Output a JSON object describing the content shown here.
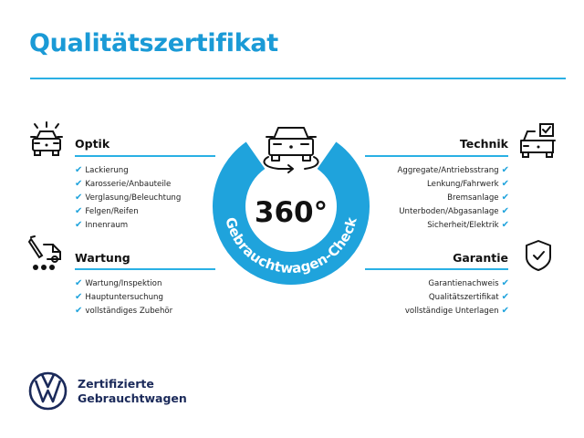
{
  "title": "Qualitätszertifikat",
  "colors": {
    "accent": "#1fa3dc",
    "title": "#1a9ad6",
    "brand": "#1b2a5a"
  },
  "center": {
    "big_text": "360°",
    "ring_text": "Gebrauchtwagen-Check",
    "icon": "car-rotate-icon"
  },
  "sections": {
    "optik": {
      "heading": "Optik",
      "icon": "car-lights-icon",
      "items": [
        "Lackierung",
        "Karosserie/Anbauteile",
        "Verglasung/Beleuchtung",
        "Felgen/Reifen",
        "Innenraum"
      ]
    },
    "wartung": {
      "heading": "Wartung",
      "icon": "service-tools-icon",
      "items": [
        "Wartung/Inspektion",
        "Hauptuntersuchung",
        "vollständiges Zubehör"
      ]
    },
    "technik": {
      "heading": "Technik",
      "icon": "car-checklist-icon",
      "items": [
        "Aggregate/Antriebsstrang",
        "Lenkung/Fahrwerk",
        "Bremsanlage",
        "Unterboden/Abgasanlage",
        "Sicherheit/Elektrik"
      ]
    },
    "garantie": {
      "heading": "Garantie",
      "icon": "shield-check-icon",
      "items": [
        "Garantienachweis",
        "Qualitätszertifikat",
        "vollständige Unterlagen"
      ]
    }
  },
  "check_glyph": "✔",
  "footer": {
    "logo": "VW",
    "line1": "Zertifizierte",
    "line2": "Gebrauchtwagen"
  }
}
